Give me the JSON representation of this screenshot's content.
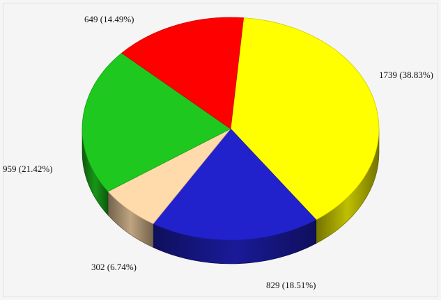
{
  "chart_data": {
    "type": "pie",
    "style": "3d",
    "title": "",
    "slices": [
      {
        "value": 1739,
        "percent": 38.83,
        "label": "1739 (38.83%)",
        "color": "#ffff00"
      },
      {
        "value": 829,
        "percent": 18.51,
        "label": "829 (18.51%)",
        "color": "#2222cc"
      },
      {
        "value": 302,
        "percent": 6.74,
        "label": "302 (6.74%)",
        "color": "#ffdaaa"
      },
      {
        "value": 959,
        "percent": 21.42,
        "label": "959 (21.42%)",
        "color": "#1ec81e"
      },
      {
        "value": 649,
        "percent": 14.49,
        "label": "649 (14.49%)",
        "color": "#ff0000"
      }
    ],
    "legend": "none"
  }
}
